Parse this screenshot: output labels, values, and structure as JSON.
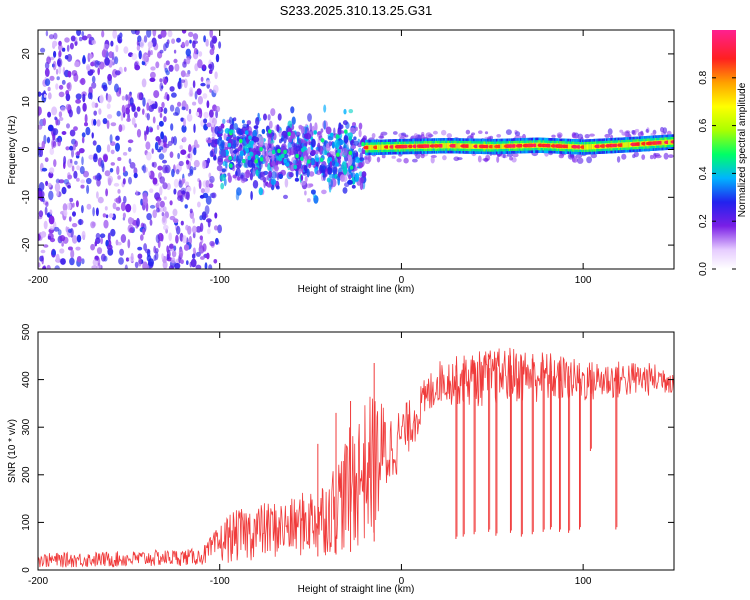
{
  "title": "S233.2025.310.13.25.G31",
  "chart_data": [
    {
      "type": "heatmap",
      "xlabel": "Height of straight line (km)",
      "ylabel": "Frequency (Hz)",
      "xlim": [
        -200,
        150
      ],
      "ylim": [
        -25,
        25
      ],
      "xticks": [
        -200,
        -100,
        0,
        100
      ],
      "yticks": [
        -20,
        -10,
        0,
        10,
        20
      ],
      "ridge": [
        {
          "x": -20,
          "y": 0.4
        },
        {
          "x": 0,
          "y": 0.6
        },
        {
          "x": 25,
          "y": 0.8
        },
        {
          "x": 50,
          "y": 0.6
        },
        {
          "x": 75,
          "y": 0.9
        },
        {
          "x": 100,
          "y": 0.5
        },
        {
          "x": 125,
          "y": 1.0
        },
        {
          "x": 150,
          "y": 1.6
        }
      ],
      "noise_regions": [
        {
          "xmin": -200,
          "xmax": -100,
          "ymin": -25,
          "ymax": 25,
          "level": 0.25
        },
        {
          "xmin": -100,
          "xmax": -20,
          "ymin": -12,
          "ymax": 10,
          "level": 0.35
        }
      ],
      "colorbar": {
        "label": "Normalized spectral amplitude",
        "range": [
          0.0,
          1.0
        ],
        "ticks": [
          0.0,
          0.2,
          0.4,
          0.6,
          0.8
        ]
      }
    },
    {
      "type": "line",
      "xlabel": "Height of straight line (km)",
      "ylabel": "SNR (10 * v/v)",
      "xlim": [
        -200,
        150
      ],
      "ylim": [
        0,
        500
      ],
      "xticks": [
        -200,
        -100,
        0,
        100
      ],
      "yticks": [
        0,
        100,
        200,
        300,
        400,
        500
      ],
      "color": "#f03a3a",
      "envelope": [
        {
          "x": -200,
          "lo": 5,
          "hi": 35
        },
        {
          "x": -150,
          "lo": 5,
          "hi": 40
        },
        {
          "x": -110,
          "lo": 10,
          "hi": 45
        },
        {
          "x": -95,
          "lo": 15,
          "hi": 120
        },
        {
          "x": -80,
          "lo": 20,
          "hi": 140
        },
        {
          "x": -60,
          "lo": 25,
          "hi": 150
        },
        {
          "x": -40,
          "lo": 30,
          "hi": 200
        },
        {
          "x": -25,
          "lo": 40,
          "hi": 330
        },
        {
          "x": -15,
          "lo": 60,
          "hi": 380
        },
        {
          "x": -5,
          "lo": 180,
          "hi": 330
        },
        {
          "x": 5,
          "lo": 250,
          "hi": 360
        },
        {
          "x": 20,
          "lo": 350,
          "hi": 440
        },
        {
          "x": 40,
          "lo": 340,
          "hi": 460
        },
        {
          "x": 60,
          "lo": 350,
          "hi": 470
        },
        {
          "x": 80,
          "lo": 350,
          "hi": 460
        },
        {
          "x": 100,
          "lo": 350,
          "hi": 440
        },
        {
          "x": 125,
          "lo": 360,
          "hi": 440
        },
        {
          "x": 150,
          "lo": 370,
          "hi": 430
        }
      ],
      "dropouts": [
        {
          "x": 30,
          "min": 65
        },
        {
          "x": 34,
          "min": 70
        },
        {
          "x": 40,
          "min": 75
        },
        {
          "x": 48,
          "min": 80
        },
        {
          "x": 52,
          "min": 72
        },
        {
          "x": 60,
          "min": 78
        },
        {
          "x": 66,
          "min": 70
        },
        {
          "x": 72,
          "min": 75
        },
        {
          "x": 78,
          "min": 80
        },
        {
          "x": 82,
          "min": 85
        },
        {
          "x": 87,
          "min": 80
        },
        {
          "x": 92,
          "min": 78
        },
        {
          "x": 98,
          "min": 85
        },
        {
          "x": 104,
          "min": 250
        },
        {
          "x": 118,
          "min": 85
        }
      ],
      "spikes": [
        {
          "x": -46,
          "hi": 265
        },
        {
          "x": -36,
          "hi": 330
        },
        {
          "x": -28,
          "hi": 355
        },
        {
          "x": -15,
          "hi": 435
        }
      ]
    }
  ]
}
